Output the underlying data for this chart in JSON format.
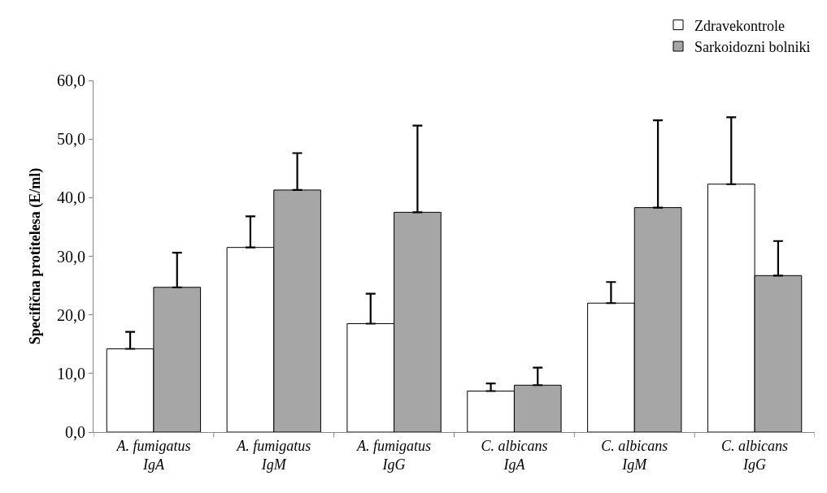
{
  "chart_data": {
    "type": "bar",
    "ylabel": "Specifična protitelesa (E/ml)",
    "categories": [
      "A. fumigatus\nIgA",
      "A. fumigatus\nIgM",
      "A. fumigatus\nIgG",
      "C. albicans\nIgA",
      "C. albicans\nIgM",
      "C. albicans\nIgG"
    ],
    "series": [
      {
        "name": "Zdravekontrole",
        "color": "#ffffff",
        "values": [
          14.2,
          31.5,
          18.5,
          7.0,
          22.0,
          42.3
        ],
        "errors": [
          [
            14.2,
            17.1
          ],
          [
            31.5,
            36.8
          ],
          [
            18.5,
            23.6
          ],
          [
            7.0,
            8.3
          ],
          [
            22.0,
            25.6
          ],
          [
            42.3,
            53.7
          ]
        ]
      },
      {
        "name": "Sarkoidozni bolniki",
        "color": "#a6a6a6",
        "values": [
          24.7,
          41.3,
          37.5,
          8.0,
          38.3,
          26.7
        ],
        "errors": [
          [
            24.7,
            30.6
          ],
          [
            41.3,
            47.6
          ],
          [
            37.5,
            52.3
          ],
          [
            8.0,
            11.0
          ],
          [
            38.3,
            53.2
          ],
          [
            26.7,
            32.6
          ]
        ]
      }
    ],
    "ylim": [
      0,
      60
    ],
    "yticks": [
      {
        "value": 0,
        "label": "0,0"
      },
      {
        "value": 10,
        "label": "10,0"
      },
      {
        "value": 20,
        "label": "20,0"
      },
      {
        "value": 30,
        "label": "30,0"
      },
      {
        "value": 40,
        "label": "40,0"
      },
      {
        "value": 50,
        "label": "50,0"
      },
      {
        "value": 60,
        "label": "60,0"
      }
    ],
    "legend": "top right"
  }
}
